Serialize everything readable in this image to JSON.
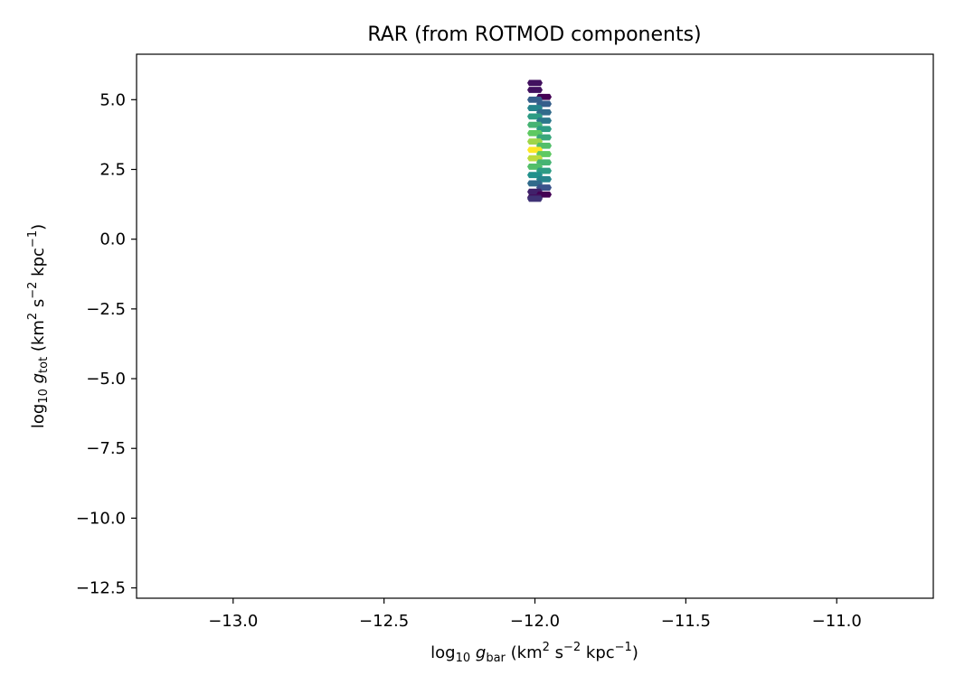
{
  "chart_data": {
    "type": "hexbin",
    "title": "RAR (from ROTMOD components)",
    "xlabel": {
      "prefix": "log",
      "prefix_sub": "10",
      "var": "g",
      "var_sub": "bar",
      "units_a": " (km",
      "units_a_sup": "2",
      "units_b": " s",
      "units_b_sup": "−2",
      "units_c": " kpc",
      "units_c_sup": "−1",
      "units_end": ")"
    },
    "ylabel": {
      "prefix": "log",
      "prefix_sub": "10",
      "var": "g",
      "var_sub": "tot",
      "units_a": " (km",
      "units_a_sup": "2",
      "units_b": " s",
      "units_b_sup": "−2",
      "units_c": " kpc",
      "units_c_sup": "−1",
      "units_end": ")"
    },
    "xlim": [
      -13.32,
      -10.68
    ],
    "ylim": [
      -12.87,
      6.63
    ],
    "xticks": [
      -13.0,
      -12.5,
      -12.0,
      -11.5,
      -11.0
    ],
    "xtick_labels": [
      "−13.0",
      "−12.5",
      "−12.0",
      "−11.5",
      "−11.0"
    ],
    "yticks": [
      5.0,
      2.5,
      0.0,
      -2.5,
      -5.0,
      -7.5,
      -10.0,
      -12.5
    ],
    "ytick_labels": [
      "5.0",
      "2.5",
      "0.0",
      "−2.5",
      "−5.0",
      "−7.5",
      "−10.0",
      "−12.5"
    ],
    "colormap": "viridis",
    "bins": [
      {
        "x": -12.0,
        "y": 5.6,
        "c": 0.05
      },
      {
        "x": -12.0,
        "y": 5.35,
        "c": 0.05
      },
      {
        "x": -11.97,
        "y": 5.1,
        "c": 0.0
      },
      {
        "x": -12.0,
        "y": 5.0,
        "c": 0.3
      },
      {
        "x": -11.97,
        "y": 4.85,
        "c": 0.3
      },
      {
        "x": -12.0,
        "y": 4.7,
        "c": 0.45
      },
      {
        "x": -11.97,
        "y": 4.55,
        "c": 0.35
      },
      {
        "x": -12.0,
        "y": 4.4,
        "c": 0.55
      },
      {
        "x": -11.97,
        "y": 4.25,
        "c": 0.4
      },
      {
        "x": -12.0,
        "y": 4.1,
        "c": 0.65
      },
      {
        "x": -11.97,
        "y": 3.95,
        "c": 0.55
      },
      {
        "x": -12.0,
        "y": 3.8,
        "c": 0.75
      },
      {
        "x": -11.97,
        "y": 3.65,
        "c": 0.6
      },
      {
        "x": -12.0,
        "y": 3.5,
        "c": 0.85
      },
      {
        "x": -11.97,
        "y": 3.35,
        "c": 0.7
      },
      {
        "x": -12.0,
        "y": 3.2,
        "c": 1.0
      },
      {
        "x": -11.97,
        "y": 3.05,
        "c": 0.75
      },
      {
        "x": -12.0,
        "y": 2.9,
        "c": 0.9
      },
      {
        "x": -11.97,
        "y": 2.75,
        "c": 0.65
      },
      {
        "x": -12.0,
        "y": 2.6,
        "c": 0.7
      },
      {
        "x": -11.97,
        "y": 2.45,
        "c": 0.55
      },
      {
        "x": -12.0,
        "y": 2.3,
        "c": 0.5
      },
      {
        "x": -11.97,
        "y": 2.15,
        "c": 0.45
      },
      {
        "x": -12.0,
        "y": 2.0,
        "c": 0.35
      },
      {
        "x": -11.97,
        "y": 1.85,
        "c": 0.25
      },
      {
        "x": -12.0,
        "y": 1.7,
        "c": 0.1
      },
      {
        "x": -11.97,
        "y": 1.6,
        "c": 0.0
      },
      {
        "x": -12.0,
        "y": 1.5,
        "c": 0.05
      },
      {
        "x": -12.0,
        "y": 1.45,
        "c": 0.15
      }
    ]
  }
}
